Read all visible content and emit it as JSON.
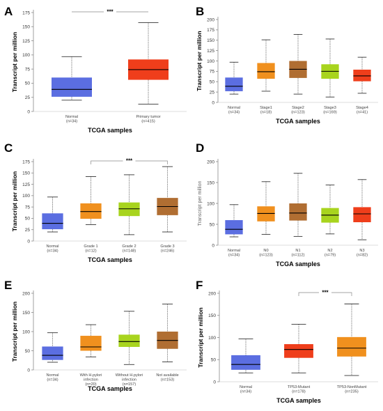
{
  "chart_data": [
    {
      "panel": "A",
      "type": "box",
      "ylabel": "Transcript per million",
      "xlabel": "TCGA samples",
      "ylim": [
        0,
        175
      ],
      "yticks": [
        0,
        25,
        50,
        75,
        100,
        125,
        150,
        175
      ],
      "significance": "***",
      "sig_pair": [
        0,
        1
      ],
      "series": [
        {
          "label": "Normal",
          "n": "(n=34)",
          "min": 20,
          "q1": 26,
          "median": 39,
          "q3": 60,
          "max": 97,
          "color": "#5b6ee1"
        },
        {
          "label": "Primary tumor",
          "n": "(n=415)",
          "min": 13,
          "q1": 56,
          "median": 74,
          "q3": 92,
          "max": 157,
          "color": "#ef3e1b"
        }
      ]
    },
    {
      "panel": "B",
      "type": "box",
      "ylabel": "Transcript per million",
      "xlabel": "TCGA samples",
      "ylim": [
        0,
        200
      ],
      "yticks": [
        0,
        25,
        50,
        75,
        100,
        125,
        150,
        175,
        200
      ],
      "series": [
        {
          "label": "Normal",
          "n": "(n=34)",
          "min": 20,
          "q1": 27,
          "median": 39,
          "q3": 60,
          "max": 97,
          "color": "#5b6ee1"
        },
        {
          "label": "Stage1",
          "n": "(n=18)",
          "min": 27,
          "q1": 57,
          "median": 74,
          "q3": 95,
          "max": 151,
          "color": "#f0901e"
        },
        {
          "label": "Stage2",
          "n": "(n=123)",
          "min": 20,
          "q1": 59,
          "median": 80,
          "q3": 100,
          "max": 164,
          "color": "#b06e32"
        },
        {
          "label": "Stage3",
          "n": "(n=169)",
          "min": 13,
          "q1": 57,
          "median": 75,
          "q3": 92,
          "max": 153,
          "color": "#a8d41e"
        },
        {
          "label": "Stage4",
          "n": "(n=41)",
          "min": 22,
          "q1": 51,
          "median": 64,
          "q3": 79,
          "max": 109,
          "color": "#ef3e1b"
        }
      ]
    },
    {
      "panel": "C",
      "type": "box",
      "ylabel": "Transcript per million",
      "xlabel": "TCGA samples",
      "ylim": [
        0,
        175
      ],
      "yticks": [
        0,
        25,
        50,
        75,
        100,
        125,
        150,
        175
      ],
      "significance": "***",
      "sig_pair": [
        1,
        3
      ],
      "series": [
        {
          "label": "Normal",
          "n": "(n=34)",
          "min": 20,
          "q1": 26,
          "median": 39,
          "q3": 61,
          "max": 97,
          "color": "#5b6ee1"
        },
        {
          "label": "Grade 1",
          "n": "(n=12)",
          "min": 36,
          "q1": 49,
          "median": 65,
          "q3": 83,
          "max": 142,
          "color": "#f0901e"
        },
        {
          "label": "Grade 2",
          "n": "(n=148)",
          "min": 14,
          "q1": 55,
          "median": 71,
          "q3": 85,
          "max": 146,
          "color": "#a8d41e"
        },
        {
          "label": "Grade 3",
          "n": "(n=246)",
          "min": 20,
          "q1": 57,
          "median": 76,
          "q3": 95,
          "max": 164,
          "color": "#b06e32"
        }
      ]
    },
    {
      "panel": "D",
      "type": "box",
      "ylabel": "Transcript per million",
      "xlabel": "TCGA samples",
      "ylim": [
        0,
        200
      ],
      "yticks": [
        0,
        50,
        100,
        150,
        200
      ],
      "series": [
        {
          "label": "Normal",
          "n": "(n=34)",
          "min": 20,
          "q1": 26,
          "median": 38,
          "q3": 60,
          "max": 97,
          "color": "#5b6ee1"
        },
        {
          "label": "N0",
          "n": "(n=123)",
          "min": 26,
          "q1": 57,
          "median": 76,
          "q3": 93,
          "max": 152,
          "color": "#f0901e"
        },
        {
          "label": "N1",
          "n": "(n=112)",
          "min": 21,
          "q1": 59,
          "median": 77,
          "q3": 100,
          "max": 172,
          "color": "#b06e32"
        },
        {
          "label": "N2",
          "n": "(n=79)",
          "min": 27,
          "q1": 54,
          "median": 72,
          "q3": 89,
          "max": 144,
          "color": "#a8d41e"
        },
        {
          "label": "N3",
          "n": "(n=82)",
          "min": 13,
          "q1": 55,
          "median": 75,
          "q3": 91,
          "max": 157,
          "color": "#ef3e1b"
        }
      ]
    },
    {
      "panel": "E",
      "type": "box",
      "ylabel": "Transcript per million",
      "xlabel": "TCGA samples",
      "ylim": [
        0,
        200
      ],
      "yticks": [
        0,
        50,
        100,
        150,
        200
      ],
      "series": [
        {
          "label": "Normal",
          "n": "(n=34)",
          "min": 20,
          "q1": 26,
          "median": 38,
          "q3": 61,
          "max": 97,
          "color": "#5b6ee1"
        },
        {
          "label": [
            "With H.pylori",
            "infection"
          ],
          "n": "(n=20)",
          "min": 34,
          "q1": 50,
          "median": 60,
          "q3": 89,
          "max": 118,
          "color": "#f0901e"
        },
        {
          "label": [
            "Without H.pylori",
            "infection"
          ],
          "n": "(n=157)",
          "min": 14,
          "q1": 60,
          "median": 74,
          "q3": 92,
          "max": 153,
          "color": "#a8d41e"
        },
        {
          "label": "Not available",
          "n": "(n=153)",
          "min": 21,
          "q1": 55,
          "median": 77,
          "q3": 100,
          "max": 172,
          "color": "#b06e32"
        }
      ]
    },
    {
      "panel": "F",
      "type": "box",
      "ylabel": "Transcript per million",
      "xlabel": "TCGA samples",
      "ylim": [
        0,
        200
      ],
      "yticks": [
        0,
        50,
        100,
        150,
        200
      ],
      "significance": "***",
      "sig_pair": [
        1,
        2
      ],
      "series": [
        {
          "label": "Normal",
          "n": "(n=34)",
          "min": 20,
          "q1": 27,
          "median": 39,
          "q3": 60,
          "max": 97,
          "color": "#5b6ee1"
        },
        {
          "label": "TP53-Mutant",
          "n": "(n=178)",
          "min": 20,
          "q1": 54,
          "median": 73,
          "q3": 85,
          "max": 130,
          "color": "#ef3e1b"
        },
        {
          "label": "TP53-NonMutant",
          "n": "(n=235)",
          "min": 14,
          "q1": 57,
          "median": 76,
          "q3": 101,
          "max": 176,
          "color": "#f0901e"
        }
      ]
    }
  ]
}
